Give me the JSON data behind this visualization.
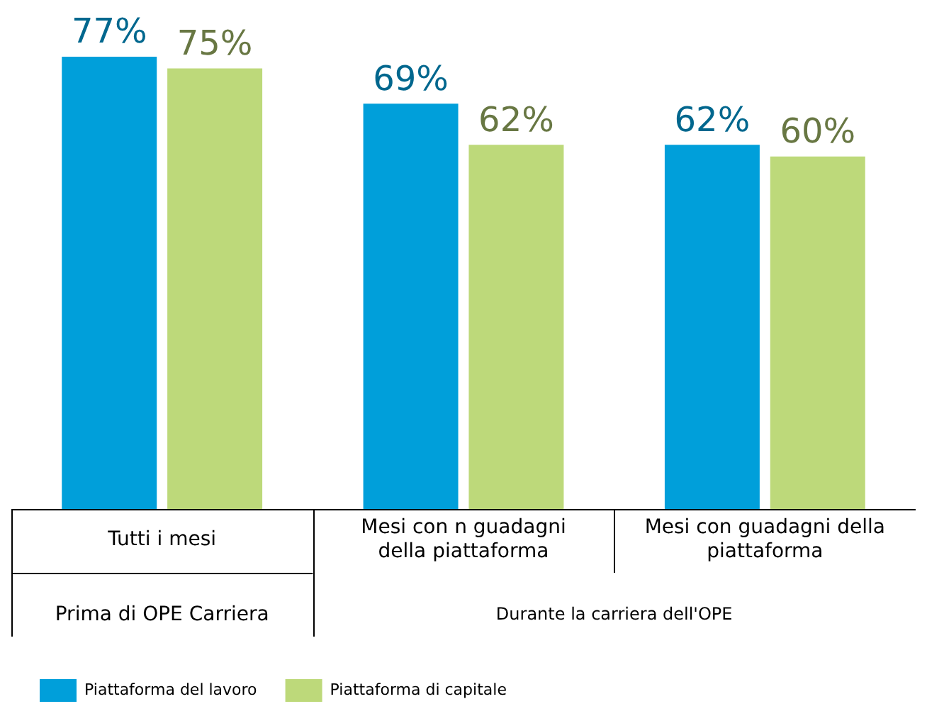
{
  "chart_data": {
    "type": "bar",
    "categories": [
      "Tutti i mesi",
      "Mesi con n guadagni della piattaforma",
      "Mesi con guadagni della piattaforma"
    ],
    "series": [
      {
        "name": "Piattaforma del lavoro",
        "color": "#009fda",
        "values": [
          77,
          69,
          62
        ],
        "value_labels": [
          "77%",
          "69%",
          "62%"
        ]
      },
      {
        "name": "Piattaforma di capitale",
        "color": "#bdd97a",
        "values": [
          75,
          62,
          60
        ],
        "value_labels": [
          "75%",
          "62%",
          "60%"
        ]
      }
    ],
    "legend": "bottom left",
    "annotations": [
      "Prima di OPE Carriera",
      "Durante la carriera dell'OPE"
    ]
  }
}
